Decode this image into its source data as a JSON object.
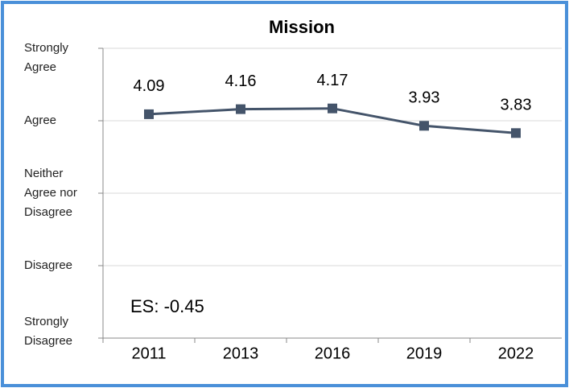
{
  "chart_data": {
    "type": "line",
    "title": "Mission",
    "categories": [
      "2011",
      "2013",
      "2016",
      "2019",
      "2022"
    ],
    "series": [
      {
        "name": "Mission",
        "color": "#44546a",
        "values": [
          4.09,
          4.16,
          4.17,
          3.93,
          3.83
        ]
      }
    ],
    "ylim": [
      1,
      5
    ],
    "yticks": [
      {
        "value": 1,
        "label": "Strongly Disagree"
      },
      {
        "value": 2,
        "label": "Disagree"
      },
      {
        "value": 3,
        "label": "Neither Agree nor Disagree"
      },
      {
        "value": 4,
        "label": "Agree"
      },
      {
        "value": 5,
        "label": "Strongly Agree"
      }
    ],
    "grid": true,
    "annotations": [
      "ES: -0.45"
    ]
  }
}
